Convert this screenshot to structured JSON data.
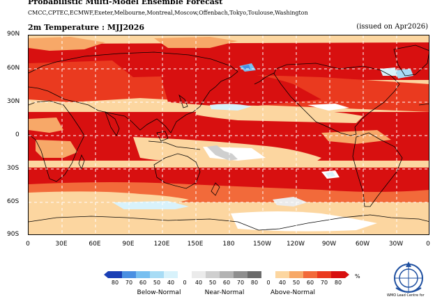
{
  "header": {
    "title": "Probabilistic Multi-Model Ensemble Forecast",
    "centres": "CMCC,CPTEC,ECMWF,Exeter,Melbourne,Montreal,Moscow,Offenbach,Tokyo,Toulouse,Washington",
    "subtitle": "2m Temperature : MJJ2026",
    "issued": "(issued on Apr2026)"
  },
  "axes": {
    "lat_labels": [
      "90N",
      "60N",
      "30N",
      "0",
      "30S",
      "60S",
      "90S"
    ],
    "lon_labels": [
      "0",
      "30E",
      "60E",
      "90E",
      "120E",
      "150E",
      "180",
      "150W",
      "120W",
      "90W",
      "60W",
      "30W",
      "0"
    ]
  },
  "colors": {
    "above_80": "#d81010",
    "above_70": "#ea3a1f",
    "above_60": "#f26a3a",
    "above_50": "#f7a868",
    "above_40": "#fcd6a0",
    "near_neutral": "#ffffff",
    "below_40": "#d8f2fb",
    "below_50": "#a8dcf5",
    "below_60": "#78bff0",
    "below_70": "#4a8fe2",
    "below_80": "#1a3fb5",
    "near_40": "#ebebeb",
    "near_50": "#cfcfcf",
    "near_60": "#b3b3b3",
    "near_70": "#8f8f8f",
    "near_80": "#6b6b6b",
    "coast": "#000000",
    "grid": "#ffffff"
  },
  "colorbar": {
    "below_ticks": [
      "80",
      "70",
      "60",
      "50",
      "40"
    ],
    "near_ticks": [
      "0",
      "40",
      "50",
      "60",
      "70",
      "80"
    ],
    "above_ticks": [
      "0",
      "40",
      "50",
      "60",
      "70",
      "80"
    ],
    "unit": "%",
    "group_below": "Below-Normal",
    "group_near": "Near-Normal",
    "group_above": "Above-Normal"
  },
  "logo": {
    "text": "WMO Lead Centre for"
  }
}
